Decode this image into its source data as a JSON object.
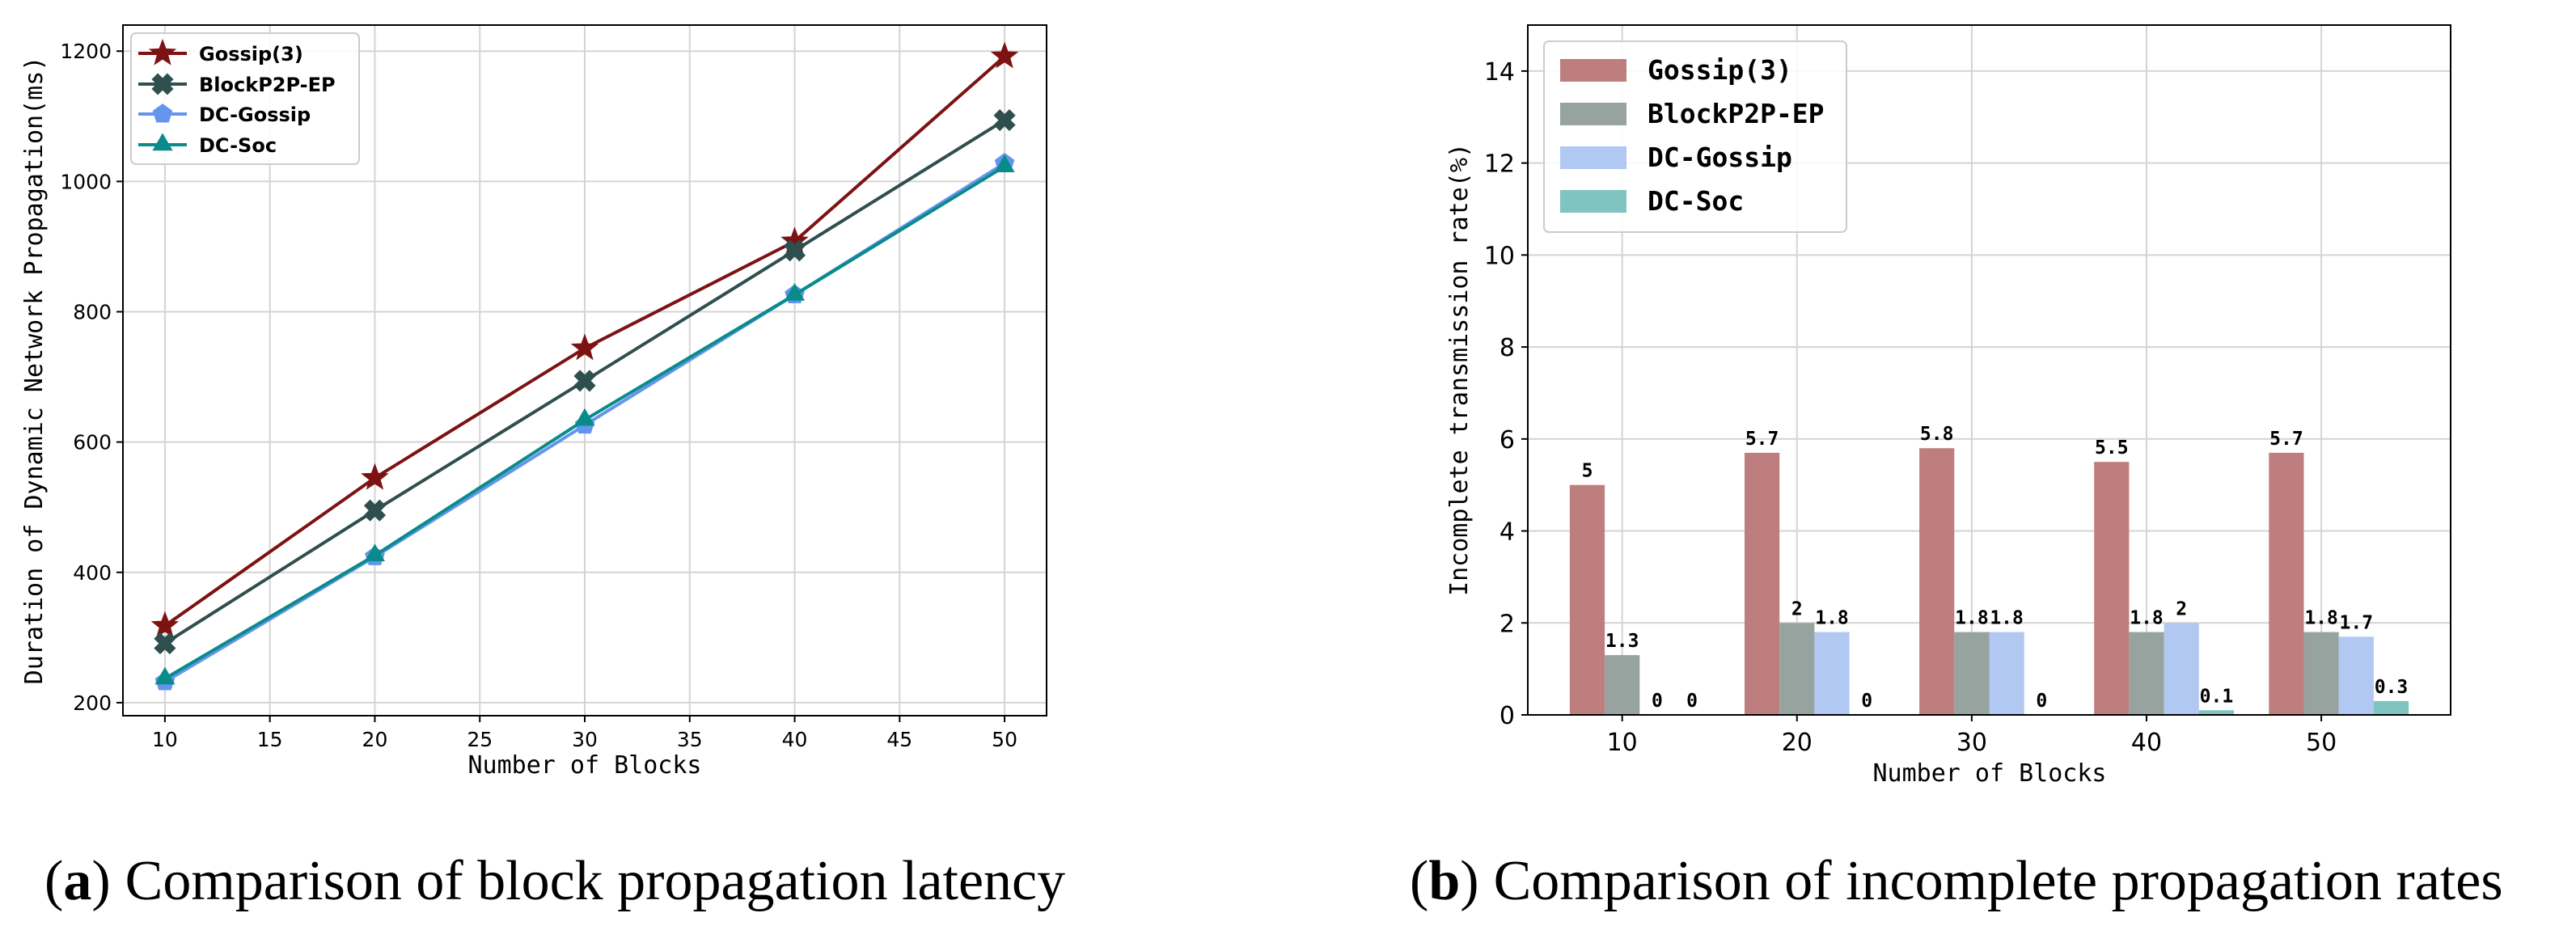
{
  "figure": {
    "captions": [
      {
        "open": "(",
        "label": "a",
        "close": ")",
        "text": "Comparison of block propagation latency"
      },
      {
        "open": "(",
        "label": "b",
        "close": ")",
        "text": "Comparison of incomplete propagation rates"
      }
    ]
  },
  "chart_data": [
    {
      "type": "line",
      "xlabel": "Number of Blocks",
      "ylabel": "Duration of Dynamic Network Propagation(ms)",
      "x": [
        10,
        20,
        30,
        40,
        50
      ],
      "xlim": [
        8,
        52
      ],
      "ylim": [
        180,
        1240
      ],
      "xticks": [
        10,
        15,
        20,
        25,
        30,
        35,
        40,
        45,
        50
      ],
      "yticks": [
        200,
        400,
        600,
        800,
        1000,
        1200
      ],
      "grid": true,
      "legend": "upper left",
      "series": [
        {
          "name": "Gossip(3)",
          "color": "#7d1212",
          "marker": "star",
          "values": [
            318,
            545,
            744,
            908,
            1192
          ]
        },
        {
          "name": "BlockP2P-EP",
          "color": "#2f4f4f",
          "marker": "x-filled",
          "values": [
            291,
            495,
            694,
            894,
            1094
          ]
        },
        {
          "name": "DC-Gossip",
          "color": "#6495ed",
          "marker": "pentagon",
          "values": [
            232,
            424,
            626,
            826,
            1028
          ]
        },
        {
          "name": "DC-Soc",
          "color": "#0a8b8b",
          "marker": "triangle",
          "values": [
            237,
            426,
            634,
            826,
            1023
          ]
        }
      ]
    },
    {
      "type": "bar",
      "xlabel": "Number of Blocks",
      "ylabel": "Incomplete transmission rate(%)",
      "categories": [
        "10",
        "20",
        "30",
        "40",
        "50"
      ],
      "ylim": [
        0,
        15
      ],
      "yticks": [
        0,
        2,
        4,
        6,
        8,
        10,
        12,
        14
      ],
      "grid": true,
      "legend": "upper left",
      "series": [
        {
          "name": "Gossip(3)",
          "color": "#bf7e7e",
          "values": [
            5,
            5.7,
            5.8,
            5.5,
            5.7
          ]
        },
        {
          "name": "BlockP2P-EP",
          "color": "#96a39f",
          "values": [
            1.3,
            2,
            1.8,
            1.8,
            1.8
          ]
        },
        {
          "name": "DC-Gossip",
          "color": "#b1c8f3",
          "values": [
            0,
            1.8,
            1.8,
            2,
            1.7
          ]
        },
        {
          "name": "DC-Soc",
          "color": "#7fc4c0",
          "values": [
            0,
            0,
            0,
            0.1,
            0.3
          ]
        }
      ]
    }
  ]
}
